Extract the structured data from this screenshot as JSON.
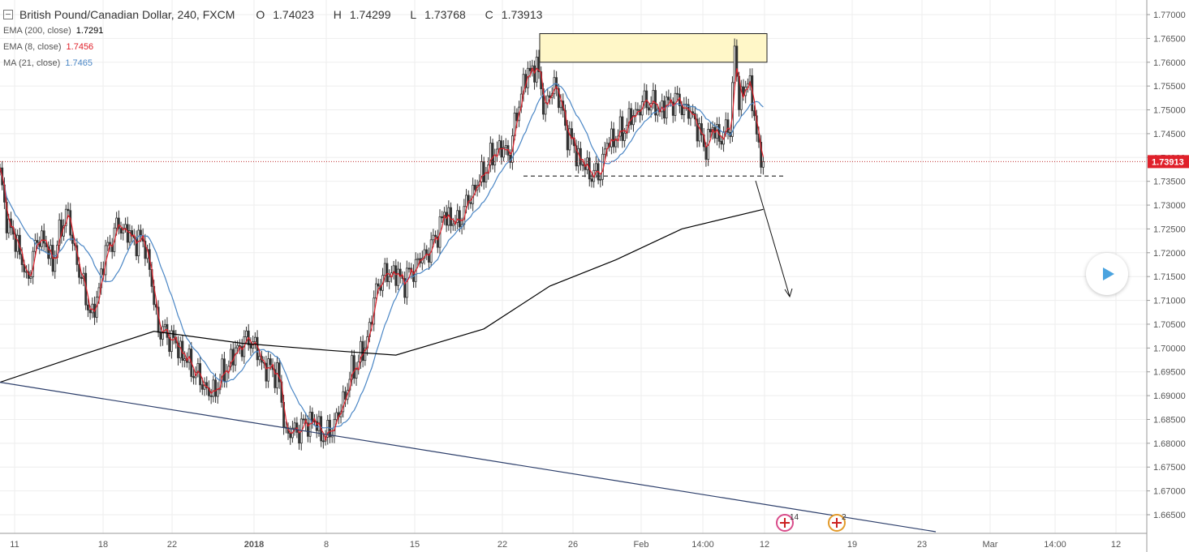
{
  "header": {
    "symbol": "British Pound/Canadian Dollar, 240, FXCM",
    "open_label": "O",
    "open": "1.74023",
    "high_label": "H",
    "high": "1.74299",
    "low_label": "L",
    "low": "1.73768",
    "close_label": "C",
    "close": "1.73913"
  },
  "indicators": [
    {
      "label": "EMA (200, close)",
      "value": "1.7291",
      "color": "#000000"
    },
    {
      "label": "EMA (8, close)",
      "value": "1.7456",
      "color": "#e0202a"
    },
    {
      "label": "MA (21, close)",
      "value": "1.7465",
      "color": "#4a86c5"
    }
  ],
  "events": [
    {
      "label": "14",
      "x": "Feb 12"
    },
    {
      "label": "2",
      "x": "Feb 18"
    }
  ],
  "chart_data": {
    "type": "candlestick",
    "y_ticks": [
      "1.77000",
      "1.76500",
      "1.76000",
      "1.75500",
      "1.75000",
      "1.74500",
      "1.74000",
      "1.73500",
      "1.73000",
      "1.72500",
      "1.72000",
      "1.71500",
      "1.71000",
      "1.70500",
      "1.70000",
      "1.69500",
      "1.69000",
      "1.68500",
      "1.68000",
      "1.67500",
      "1.67000",
      "1.66500"
    ],
    "ylim": [
      1.6615,
      1.7718
    ],
    "x_ticks": [
      "11",
      "18",
      "22",
      "2018",
      "8",
      "15",
      "22",
      "26",
      "Feb",
      "14:00",
      "12",
      "19",
      "23",
      "Mar",
      "14:00",
      "12"
    ],
    "last_price": "1.73913",
    "support_level": 1.7361,
    "resistance_zone": [
      1.76,
      1.766
    ],
    "price_path": [
      {
        "t": 0,
        "p": 1.736
      },
      {
        "t": 4,
        "p": 1.725
      },
      {
        "t": 8,
        "p": 1.722
      },
      {
        "t": 12,
        "p": 1.714
      },
      {
        "t": 18,
        "p": 1.724
      },
      {
        "t": 24,
        "p": 1.718
      },
      {
        "t": 30,
        "p": 1.729
      },
      {
        "t": 36,
        "p": 1.716
      },
      {
        "t": 42,
        "p": 1.706
      },
      {
        "t": 48,
        "p": 1.72
      },
      {
        "t": 54,
        "p": 1.726
      },
      {
        "t": 60,
        "p": 1.723
      },
      {
        "t": 66,
        "p": 1.722
      },
      {
        "t": 72,
        "p": 1.704
      },
      {
        "t": 78,
        "p": 1.702
      },
      {
        "t": 84,
        "p": 1.698
      },
      {
        "t": 90,
        "p": 1.694
      },
      {
        "t": 96,
        "p": 1.69
      },
      {
        "t": 102,
        "p": 1.695
      },
      {
        "t": 108,
        "p": 1.7
      },
      {
        "t": 114,
        "p": 1.702
      },
      {
        "t": 120,
        "p": 1.696
      },
      {
        "t": 126,
        "p": 1.695
      },
      {
        "t": 130,
        "p": 1.682
      },
      {
        "t": 136,
        "p": 1.683
      },
      {
        "t": 142,
        "p": 1.685
      },
      {
        "t": 148,
        "p": 1.681
      },
      {
        "t": 154,
        "p": 1.686
      },
      {
        "t": 160,
        "p": 1.695
      },
      {
        "t": 166,
        "p": 1.7
      },
      {
        "t": 172,
        "p": 1.714
      },
      {
        "t": 178,
        "p": 1.716
      },
      {
        "t": 184,
        "p": 1.714
      },
      {
        "t": 190,
        "p": 1.718
      },
      {
        "t": 196,
        "p": 1.721
      },
      {
        "t": 202,
        "p": 1.728
      },
      {
        "t": 208,
        "p": 1.726
      },
      {
        "t": 214,
        "p": 1.732
      },
      {
        "t": 220,
        "p": 1.737
      },
      {
        "t": 226,
        "p": 1.742
      },
      {
        "t": 232,
        "p": 1.741
      },
      {
        "t": 236,
        "p": 1.752
      },
      {
        "t": 240,
        "p": 1.758
      },
      {
        "t": 244,
        "p": 1.759
      },
      {
        "t": 248,
        "p": 1.75
      },
      {
        "t": 252,
        "p": 1.756
      },
      {
        "t": 258,
        "p": 1.745
      },
      {
        "t": 264,
        "p": 1.739
      },
      {
        "t": 268,
        "p": 1.737
      },
      {
        "t": 272,
        "p": 1.736
      },
      {
        "t": 276,
        "p": 1.743
      },
      {
        "t": 282,
        "p": 1.745
      },
      {
        "t": 288,
        "p": 1.749
      },
      {
        "t": 294,
        "p": 1.752
      },
      {
        "t": 300,
        "p": 1.75
      },
      {
        "t": 306,
        "p": 1.752
      },
      {
        "t": 310,
        "p": 1.751
      },
      {
        "t": 316,
        "p": 1.748
      },
      {
        "t": 320,
        "p": 1.742
      },
      {
        "t": 324,
        "p": 1.746
      },
      {
        "t": 328,
        "p": 1.744
      },
      {
        "t": 332,
        "p": 1.747
      },
      {
        "t": 334,
        "p": 1.762
      },
      {
        "t": 336,
        "p": 1.752
      },
      {
        "t": 340,
        "p": 1.756
      },
      {
        "t": 343,
        "p": 1.75
      },
      {
        "t": 345,
        "p": 1.74
      },
      {
        "t": 347,
        "p": 1.739
      }
    ],
    "series": [
      {
        "name": "EMA (200, close)",
        "color": "#000000",
        "points": [
          {
            "t": 0,
            "p": 1.6928
          },
          {
            "t": 40,
            "p": 1.699
          },
          {
            "t": 70,
            "p": 1.7035
          },
          {
            "t": 110,
            "p": 1.701
          },
          {
            "t": 150,
            "p": 1.6995
          },
          {
            "t": 180,
            "p": 1.6985
          },
          {
            "t": 220,
            "p": 1.704
          },
          {
            "t": 250,
            "p": 1.713
          },
          {
            "t": 280,
            "p": 1.7185
          },
          {
            "t": 310,
            "p": 1.725
          },
          {
            "t": 347,
            "p": 1.7291
          }
        ]
      },
      {
        "name": "EMA (8, close)",
        "color": "#e0202a",
        "smooth": 3,
        "end": 1.7456
      },
      {
        "name": "MA (21, close)",
        "color": "#4a86c5",
        "smooth": 8,
        "end": 1.7465
      }
    ],
    "trendline": [
      {
        "t": 0,
        "p": 1.6928
      },
      {
        "t": 424,
        "p": 1.6615
      }
    ],
    "forecast_arrow": [
      {
        "t": 344,
        "p": 1.7345
      },
      {
        "t": 358,
        "p": 1.7088
      }
    ]
  }
}
